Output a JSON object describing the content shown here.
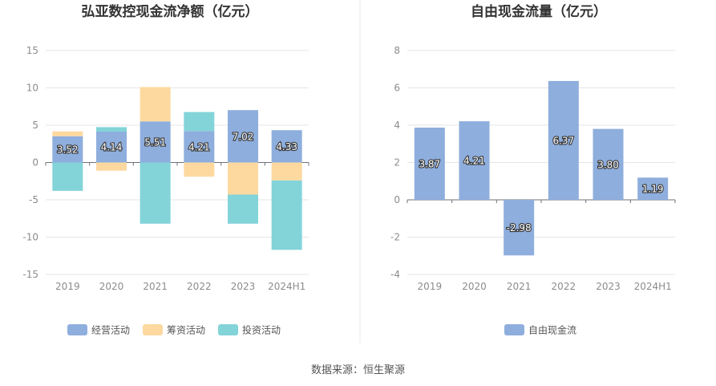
{
  "colors": {
    "operating": "#8eaedd",
    "financing": "#fdd9a0",
    "investing": "#82d4d8",
    "fcf": "#8eaedd",
    "grid": "#e6e6e6",
    "axis": "#6e7079",
    "divider": "#e8e8e8"
  },
  "source_text": "数据来源：恒生聚源",
  "chart_data": [
    {
      "type": "bar",
      "stacked": true,
      "title": "弘亚数控现金流净额（亿元）",
      "categories": [
        "2019",
        "2020",
        "2021",
        "2022",
        "2023",
        "2024H1"
      ],
      "ylim": [
        -15,
        15
      ],
      "yticks": [
        15,
        10,
        5,
        0,
        -5,
        -10,
        -15
      ],
      "grid": true,
      "legend_position": "bottom",
      "series": [
        {
          "name": "经营活动",
          "color_key": "operating",
          "values": [
            3.52,
            4.14,
            5.51,
            4.21,
            7.02,
            4.33
          ],
          "show_labels": true
        },
        {
          "name": "筹资活动",
          "color_key": "financing",
          "values": [
            0.65,
            -1.1,
            4.6,
            -1.9,
            -4.3,
            -2.4
          ],
          "show_labels": false
        },
        {
          "name": "投资活动",
          "color_key": "investing",
          "values": [
            -3.8,
            0.6,
            -8.2,
            2.55,
            -3.9,
            -9.3
          ],
          "show_labels": false
        }
      ]
    },
    {
      "type": "bar",
      "stacked": false,
      "title": "自由现金流量（亿元）",
      "categories": [
        "2019",
        "2020",
        "2021",
        "2022",
        "2023",
        "2024H1"
      ],
      "ylim": [
        -4,
        8
      ],
      "yticks": [
        8,
        6,
        4,
        2,
        0,
        -2,
        -4
      ],
      "grid": true,
      "legend_position": "bottom",
      "series": [
        {
          "name": "自由现金流",
          "color_key": "fcf",
          "values": [
            3.87,
            4.21,
            -2.98,
            6.37,
            3.8,
            1.19
          ],
          "show_labels": true
        }
      ]
    }
  ]
}
